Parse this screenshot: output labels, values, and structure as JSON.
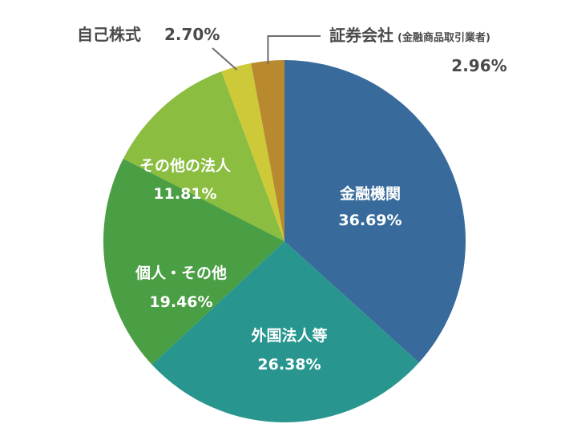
{
  "chart_data": {
    "type": "pie",
    "slices": [
      {
        "label": "金融機関",
        "value": 36.69,
        "value_label": "36.69%",
        "color": "#386b9c",
        "label_position": "inside"
      },
      {
        "label": "外国法人等",
        "value": 26.38,
        "value_label": "26.38%",
        "color": "#28968f",
        "label_position": "inside"
      },
      {
        "label": "個人・その他",
        "value": 19.46,
        "value_label": "19.46%",
        "color": "#4a9e43",
        "label_position": "inside"
      },
      {
        "label": "その他の法人",
        "value": 11.81,
        "value_label": "11.81%",
        "color": "#8abd40",
        "label_position": "inside"
      },
      {
        "label": "自己株式",
        "value": 2.7,
        "value_label": "2.70%",
        "color": "#cdc938",
        "label_position": "outside"
      },
      {
        "label": "証券会社",
        "label_note": "(金融商品取引業者)",
        "value": 2.96,
        "value_label": "2.96%",
        "color": "#b8892e",
        "label_position": "outside"
      }
    ],
    "start": "12 o'clock",
    "direction": "clockwise"
  }
}
